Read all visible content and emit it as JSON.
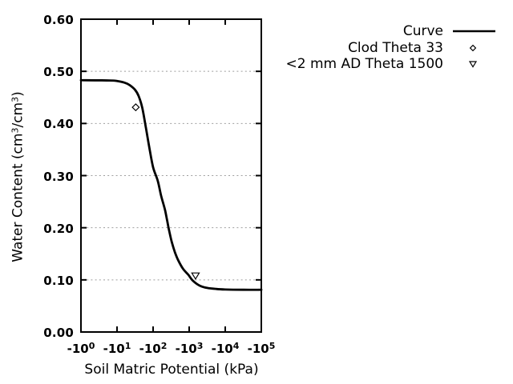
{
  "style": {
    "background": "#ffffff",
    "axis_color": "#000000",
    "curve_color": "#000000",
    "grid_color": "#9e9e9e",
    "marker_fill": "#ffffff",
    "text_color": "#000000"
  },
  "chart_data": {
    "type": "line",
    "title": "",
    "x_axis": {
      "title": "Soil Matric Potential (kPa)",
      "scale": "negative-log10",
      "range_log10": [
        0,
        5
      ],
      "ticks": [
        {
          "base": "-10",
          "exp": "0",
          "log10": 0
        },
        {
          "base": "-10",
          "exp": "1",
          "log10": 1
        },
        {
          "base": "-10",
          "exp": "2",
          "log10": 2
        },
        {
          "base": "-10",
          "exp": "3",
          "log10": 3
        },
        {
          "base": "-10",
          "exp": "4",
          "log10": 4
        },
        {
          "base": "-10",
          "exp": "5",
          "log10": 5
        }
      ]
    },
    "y_axis": {
      "title_parts": [
        {
          "t": "Water Content (cm"
        },
        {
          "t": "3",
          "sup": true
        },
        {
          "t": "/cm"
        },
        {
          "t": "3",
          "sup": true
        },
        {
          "t": ")"
        }
      ],
      "range": [
        0.0,
        0.6
      ],
      "ticks": [
        {
          "label": "0.00",
          "value": 0.0
        },
        {
          "label": "0.10",
          "value": 0.1
        },
        {
          "label": "0.20",
          "value": 0.2
        },
        {
          "label": "0.30",
          "value": 0.3
        },
        {
          "label": "0.40",
          "value": 0.4
        },
        {
          "label": "0.50",
          "value": 0.5
        },
        {
          "label": "0.60",
          "value": 0.6
        }
      ],
      "gridlines": [
        0.1,
        0.2,
        0.3,
        0.4,
        0.5
      ]
    },
    "legend": {
      "position": "top-right"
    },
    "series": [
      {
        "name": "Curve",
        "kind": "line",
        "points_log10_theta": [
          [
            0.0,
            0.483
          ],
          [
            0.8,
            0.4825
          ],
          [
            1.0,
            0.4815
          ],
          [
            1.2,
            0.4785
          ],
          [
            1.35,
            0.4735
          ],
          [
            1.5,
            0.4645
          ],
          [
            1.6,
            0.4525
          ],
          [
            1.7,
            0.43
          ],
          [
            1.8,
            0.392
          ],
          [
            1.9,
            0.352
          ],
          [
            2.0,
            0.316
          ],
          [
            2.13,
            0.29
          ],
          [
            2.22,
            0.262
          ],
          [
            2.33,
            0.234
          ],
          [
            2.39,
            0.2135
          ],
          [
            2.44,
            0.196
          ],
          [
            2.52,
            0.172
          ],
          [
            2.61,
            0.152
          ],
          [
            2.7,
            0.137
          ],
          [
            2.83,
            0.121
          ],
          [
            2.98,
            0.1095
          ],
          [
            3.1,
            0.0985
          ],
          [
            3.3,
            0.0885
          ],
          [
            3.5,
            0.0845
          ],
          [
            3.75,
            0.0825
          ],
          [
            4.0,
            0.0815
          ],
          [
            4.5,
            0.081
          ],
          [
            5.0,
            0.081
          ]
        ]
      },
      {
        "name": "Clod Theta 33",
        "kind": "scatter",
        "marker": "diamond-open",
        "points": [
          {
            "psi_kpa": -33,
            "theta": 0.431
          }
        ]
      },
      {
        "name": "<2 mm AD Theta 1500",
        "kind": "scatter",
        "marker": "triangle-down-open",
        "points": [
          {
            "psi_kpa": -1500,
            "theta": 0.108
          }
        ]
      }
    ]
  }
}
